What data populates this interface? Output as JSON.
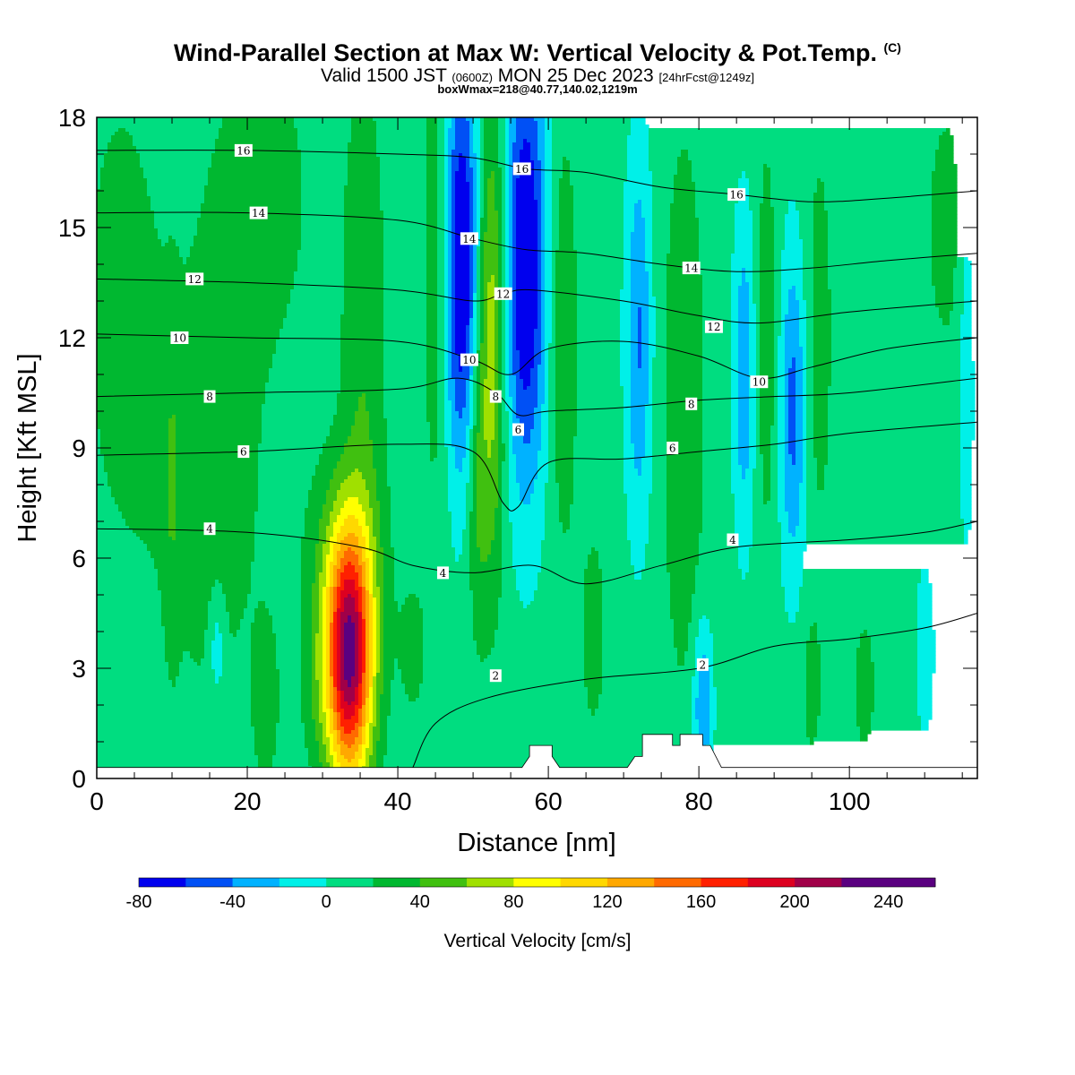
{
  "header": {
    "title": "Wind-Parallel Section at Max W: Vertical Velocity & Pot.Temp.",
    "title_mark": "(C)",
    "valid_prefix": "Valid 1500 JST",
    "valid_utc": "(0600Z)",
    "valid_date": "MON 25 Dec 2023",
    "forecast_info": "[24hrFcst@1249z]",
    "box_info": "boxWmax=218@40.77,140.02,1219m"
  },
  "chart_data": {
    "type": "heatmap",
    "xlabel": "Distance [nm]",
    "ylabel": "Height [Kft MSL]",
    "xlim": [
      0,
      117
    ],
    "ylim": [
      0,
      18
    ],
    "xticks": [
      0,
      20,
      40,
      60,
      80,
      100
    ],
    "yticks": [
      0,
      3,
      6,
      9,
      12,
      15,
      18
    ],
    "colorbar": {
      "label": "Vertical Velocity [cm/s]",
      "bounds": [
        -80,
        -60,
        -40,
        -20,
        0,
        20,
        40,
        60,
        80,
        100,
        120,
        140,
        160,
        180,
        200,
        220,
        240,
        260
      ],
      "tick_labels": [
        -80,
        -40,
        0,
        40,
        80,
        120,
        160,
        200,
        240
      ],
      "colors": [
        "#0000ee",
        "#0050f5",
        "#00b2ff",
        "#00f0e8",
        "#00dd80",
        "#00b830",
        "#40c010",
        "#a0e000",
        "#ffff00",
        "#ffd800",
        "#ffa800",
        "#ff6a00",
        "#ff2000",
        "#dd0020",
        "#a00048",
        "#5a0080",
        "#5a0080"
      ]
    },
    "w_base": 8,
    "w_features": [
      {
        "x": 33.5,
        "y": 3.2,
        "sx": 2.2,
        "sy": 2.4,
        "amp": 210
      },
      {
        "x": 33.0,
        "y": 6.0,
        "sx": 3.5,
        "sy": 2.0,
        "amp": 30
      },
      {
        "x": 35.5,
        "y": 12.0,
        "sx": 2.0,
        "sy": 5.0,
        "amp": 30
      },
      {
        "x": 29.0,
        "y": 2.5,
        "sx": 1.5,
        "sy": 1.5,
        "amp": 15
      },
      {
        "x": 48.5,
        "y": 14.0,
        "sx": 1.5,
        "sy": 3.8,
        "amp": -95
      },
      {
        "x": 57.0,
        "y": 14.0,
        "sx": 1.9,
        "sy": 4.2,
        "amp": -95
      },
      {
        "x": 52.5,
        "y": 12.0,
        "sx": 1.3,
        "sy": 4.5,
        "amp": 65
      },
      {
        "x": 50.5,
        "y": 8.0,
        "sx": 1.0,
        "sy": 3.0,
        "amp": 30
      },
      {
        "x": 62.0,
        "y": 12.0,
        "sx": 1.3,
        "sy": 4.0,
        "amp": 30
      },
      {
        "x": 45.0,
        "y": 14.0,
        "sx": 1.2,
        "sy": 5.0,
        "amp": 25
      },
      {
        "x": 72.0,
        "y": 12.0,
        "sx": 1.2,
        "sy": 3.5,
        "amp": -50
      },
      {
        "x": 78.0,
        "y": 10.0,
        "sx": 2.0,
        "sy": 5.5,
        "amp": 28
      },
      {
        "x": 86.0,
        "y": 11.0,
        "sx": 1.0,
        "sy": 3.0,
        "amp": -45
      },
      {
        "x": 92.5,
        "y": 10.0,
        "sx": 1.2,
        "sy": 3.0,
        "amp": -55
      },
      {
        "x": 89.0,
        "y": 12.0,
        "sx": 1.0,
        "sy": 4.0,
        "amp": 25
      },
      {
        "x": 96.0,
        "y": 12.0,
        "sx": 1.3,
        "sy": 4.0,
        "amp": 22
      },
      {
        "x": 80.5,
        "y": 2.0,
        "sx": 0.9,
        "sy": 1.6,
        "amp": -50
      },
      {
        "x": 15.0,
        "y": 8.0,
        "sx": 6.0,
        "sy": 5.0,
        "amp": 20
      },
      {
        "x": 3.0,
        "y": 13.0,
        "sx": 4.0,
        "sy": 5.0,
        "amp": 18
      },
      {
        "x": 22.0,
        "y": 16.0,
        "sx": 5.0,
        "sy": 3.0,
        "amp": 20
      },
      {
        "x": 10.0,
        "y": 8.0,
        "sx": 0.7,
        "sy": 3.0,
        "amp": 20
      },
      {
        "x": 16.0,
        "y": 3.5,
        "sx": 0.7,
        "sy": 1.0,
        "amp": -30
      },
      {
        "x": 22.5,
        "y": 2.0,
        "sx": 1.2,
        "sy": 1.5,
        "amp": 22
      },
      {
        "x": 110.0,
        "y": 3.5,
        "sx": 0.8,
        "sy": 1.5,
        "amp": -25
      },
      {
        "x": 113.0,
        "y": 15.0,
        "sx": 2.5,
        "sy": 3.0,
        "amp": 18
      },
      {
        "x": 102.0,
        "y": 2.5,
        "sx": 1.2,
        "sy": 1.5,
        "amp": 20
      },
      {
        "x": 95.0,
        "y": 2.5,
        "sx": 1.0,
        "sy": 1.5,
        "amp": 20
      },
      {
        "x": 42.0,
        "y": 3.5,
        "sx": 1.5,
        "sy": 1.5,
        "amp": 18
      },
      {
        "x": 66.0,
        "y": 4.0,
        "sx": 1.5,
        "sy": 2.5,
        "amp": 18
      },
      {
        "x": 115.5,
        "y": 12.0,
        "sx": 0.8,
        "sy": 4.0,
        "amp": -22
      }
    ],
    "terrain": [
      [
        0,
        0.3
      ],
      [
        56.5,
        0.3
      ],
      [
        57.5,
        0.6
      ],
      [
        57.5,
        0.9
      ],
      [
        60.5,
        0.9
      ],
      [
        60.5,
        0.6
      ],
      [
        61.5,
        0.3
      ],
      [
        70.5,
        0.3
      ],
      [
        71.5,
        0.6
      ],
      [
        72.5,
        0.6
      ],
      [
        72.5,
        1.2
      ],
      [
        76.5,
        1.2
      ],
      [
        76.5,
        0.9
      ],
      [
        77.5,
        0.9
      ],
      [
        77.5,
        1.2
      ],
      [
        80.5,
        1.2
      ],
      [
        80.5,
        0.9
      ],
      [
        81.5,
        0.9
      ],
      [
        83,
        0.3
      ],
      [
        117,
        0.3
      ]
    ],
    "theta_lines": [
      {
        "value": 2,
        "points": [
          [
            42,
            0.3
          ],
          [
            45,
            1.5
          ],
          [
            52,
            2.2
          ],
          [
            65,
            2.7
          ],
          [
            80,
            3.0
          ],
          [
            90,
            3.6
          ],
          [
            100,
            3.8
          ],
          [
            110,
            4.1
          ],
          [
            117,
            4.5
          ]
        ]
      },
      {
        "value": 4,
        "points": [
          [
            0,
            6.8
          ],
          [
            20,
            6.7
          ],
          [
            35,
            6.3
          ],
          [
            42,
            5.8
          ],
          [
            50,
            5.6
          ],
          [
            58,
            5.8
          ],
          [
            65,
            5.3
          ],
          [
            75,
            5.8
          ],
          [
            85,
            6.3
          ],
          [
            100,
            6.5
          ],
          [
            110,
            6.7
          ],
          [
            117,
            7.0
          ]
        ]
      },
      {
        "value": 6,
        "points": [
          [
            0,
            8.8
          ],
          [
            20,
            8.9
          ],
          [
            40,
            9.1
          ],
          [
            50,
            8.9
          ],
          [
            54,
            7.5
          ],
          [
            56,
            7.4
          ],
          [
            60,
            8.6
          ],
          [
            70,
            8.7
          ],
          [
            80,
            8.9
          ],
          [
            90,
            9.1
          ],
          [
            100,
            9.4
          ],
          [
            117,
            9.7
          ]
        ]
      },
      {
        "value": 8,
        "points": [
          [
            0,
            10.4
          ],
          [
            20,
            10.5
          ],
          [
            40,
            10.6
          ],
          [
            48,
            10.9
          ],
          [
            53,
            10.5
          ],
          [
            56,
            9.9
          ],
          [
            60,
            10.0
          ],
          [
            70,
            10.1
          ],
          [
            80,
            10.3
          ],
          [
            90,
            10.4
          ],
          [
            100,
            10.5
          ],
          [
            117,
            10.9
          ]
        ]
      },
      {
        "value": 10,
        "points": [
          [
            0,
            12.1
          ],
          [
            20,
            12.0
          ],
          [
            40,
            11.9
          ],
          [
            50,
            11.4
          ],
          [
            55,
            11.0
          ],
          [
            60,
            11.7
          ],
          [
            70,
            11.9
          ],
          [
            80,
            11.5
          ],
          [
            88,
            10.9
          ],
          [
            95,
            11.2
          ],
          [
            105,
            11.7
          ],
          [
            117,
            12.0
          ]
        ]
      },
      {
        "value": 12,
        "points": [
          [
            0,
            13.6
          ],
          [
            20,
            13.5
          ],
          [
            40,
            13.3
          ],
          [
            50,
            13.0
          ],
          [
            54,
            13.2
          ],
          [
            58,
            13.3
          ],
          [
            70,
            13.0
          ],
          [
            80,
            12.6
          ],
          [
            88,
            12.4
          ],
          [
            100,
            12.7
          ],
          [
            117,
            13.0
          ]
        ]
      },
      {
        "value": 14,
        "points": [
          [
            0,
            15.4
          ],
          [
            20,
            15.4
          ],
          [
            40,
            15.2
          ],
          [
            50,
            14.7
          ],
          [
            57,
            14.4
          ],
          [
            65,
            14.3
          ],
          [
            75,
            14.0
          ],
          [
            85,
            13.8
          ],
          [
            95,
            13.9
          ],
          [
            105,
            14.1
          ],
          [
            117,
            14.3
          ]
        ]
      },
      {
        "value": 16,
        "points": [
          [
            0,
            17.1
          ],
          [
            20,
            17.1
          ],
          [
            40,
            17.0
          ],
          [
            50,
            16.9
          ],
          [
            57,
            16.6
          ],
          [
            65,
            16.5
          ],
          [
            75,
            16.1
          ],
          [
            85,
            15.9
          ],
          [
            95,
            15.7
          ],
          [
            105,
            15.8
          ],
          [
            117,
            16.0
          ]
        ]
      }
    ],
    "theta_labels": [
      {
        "value": 16,
        "x": 19.5,
        "y": 17.1
      },
      {
        "value": 14,
        "x": 21.5,
        "y": 15.4
      },
      {
        "value": 12,
        "x": 13,
        "y": 13.6
      },
      {
        "value": 10,
        "x": 11,
        "y": 12.0
      },
      {
        "value": 8,
        "x": 15,
        "y": 10.4
      },
      {
        "value": 6,
        "x": 19.5,
        "y": 8.9
      },
      {
        "value": 4,
        "x": 15,
        "y": 6.8
      },
      {
        "value": 16,
        "x": 56.5,
        "y": 16.6
      },
      {
        "value": 14,
        "x": 49.5,
        "y": 14.7
      },
      {
        "value": 12,
        "x": 54,
        "y": 13.2
      },
      {
        "value": 10,
        "x": 49.5,
        "y": 11.4
      },
      {
        "value": 8,
        "x": 53,
        "y": 10.4
      },
      {
        "value": 6,
        "x": 56,
        "y": 9.5
      },
      {
        "value": 4,
        "x": 46,
        "y": 5.6
      },
      {
        "value": 2,
        "x": 53,
        "y": 2.8
      },
      {
        "value": 16,
        "x": 85,
        "y": 15.9
      },
      {
        "value": 14,
        "x": 79,
        "y": 13.9
      },
      {
        "value": 12,
        "x": 82,
        "y": 12.3
      },
      {
        "value": 10,
        "x": 88,
        "y": 10.8
      },
      {
        "value": 8,
        "x": 79,
        "y": 10.2
      },
      {
        "value": 6,
        "x": 76.5,
        "y": 9.0
      },
      {
        "value": 4,
        "x": 84.5,
        "y": 6.5
      },
      {
        "value": 2,
        "x": 80.5,
        "y": 3.1
      }
    ]
  }
}
